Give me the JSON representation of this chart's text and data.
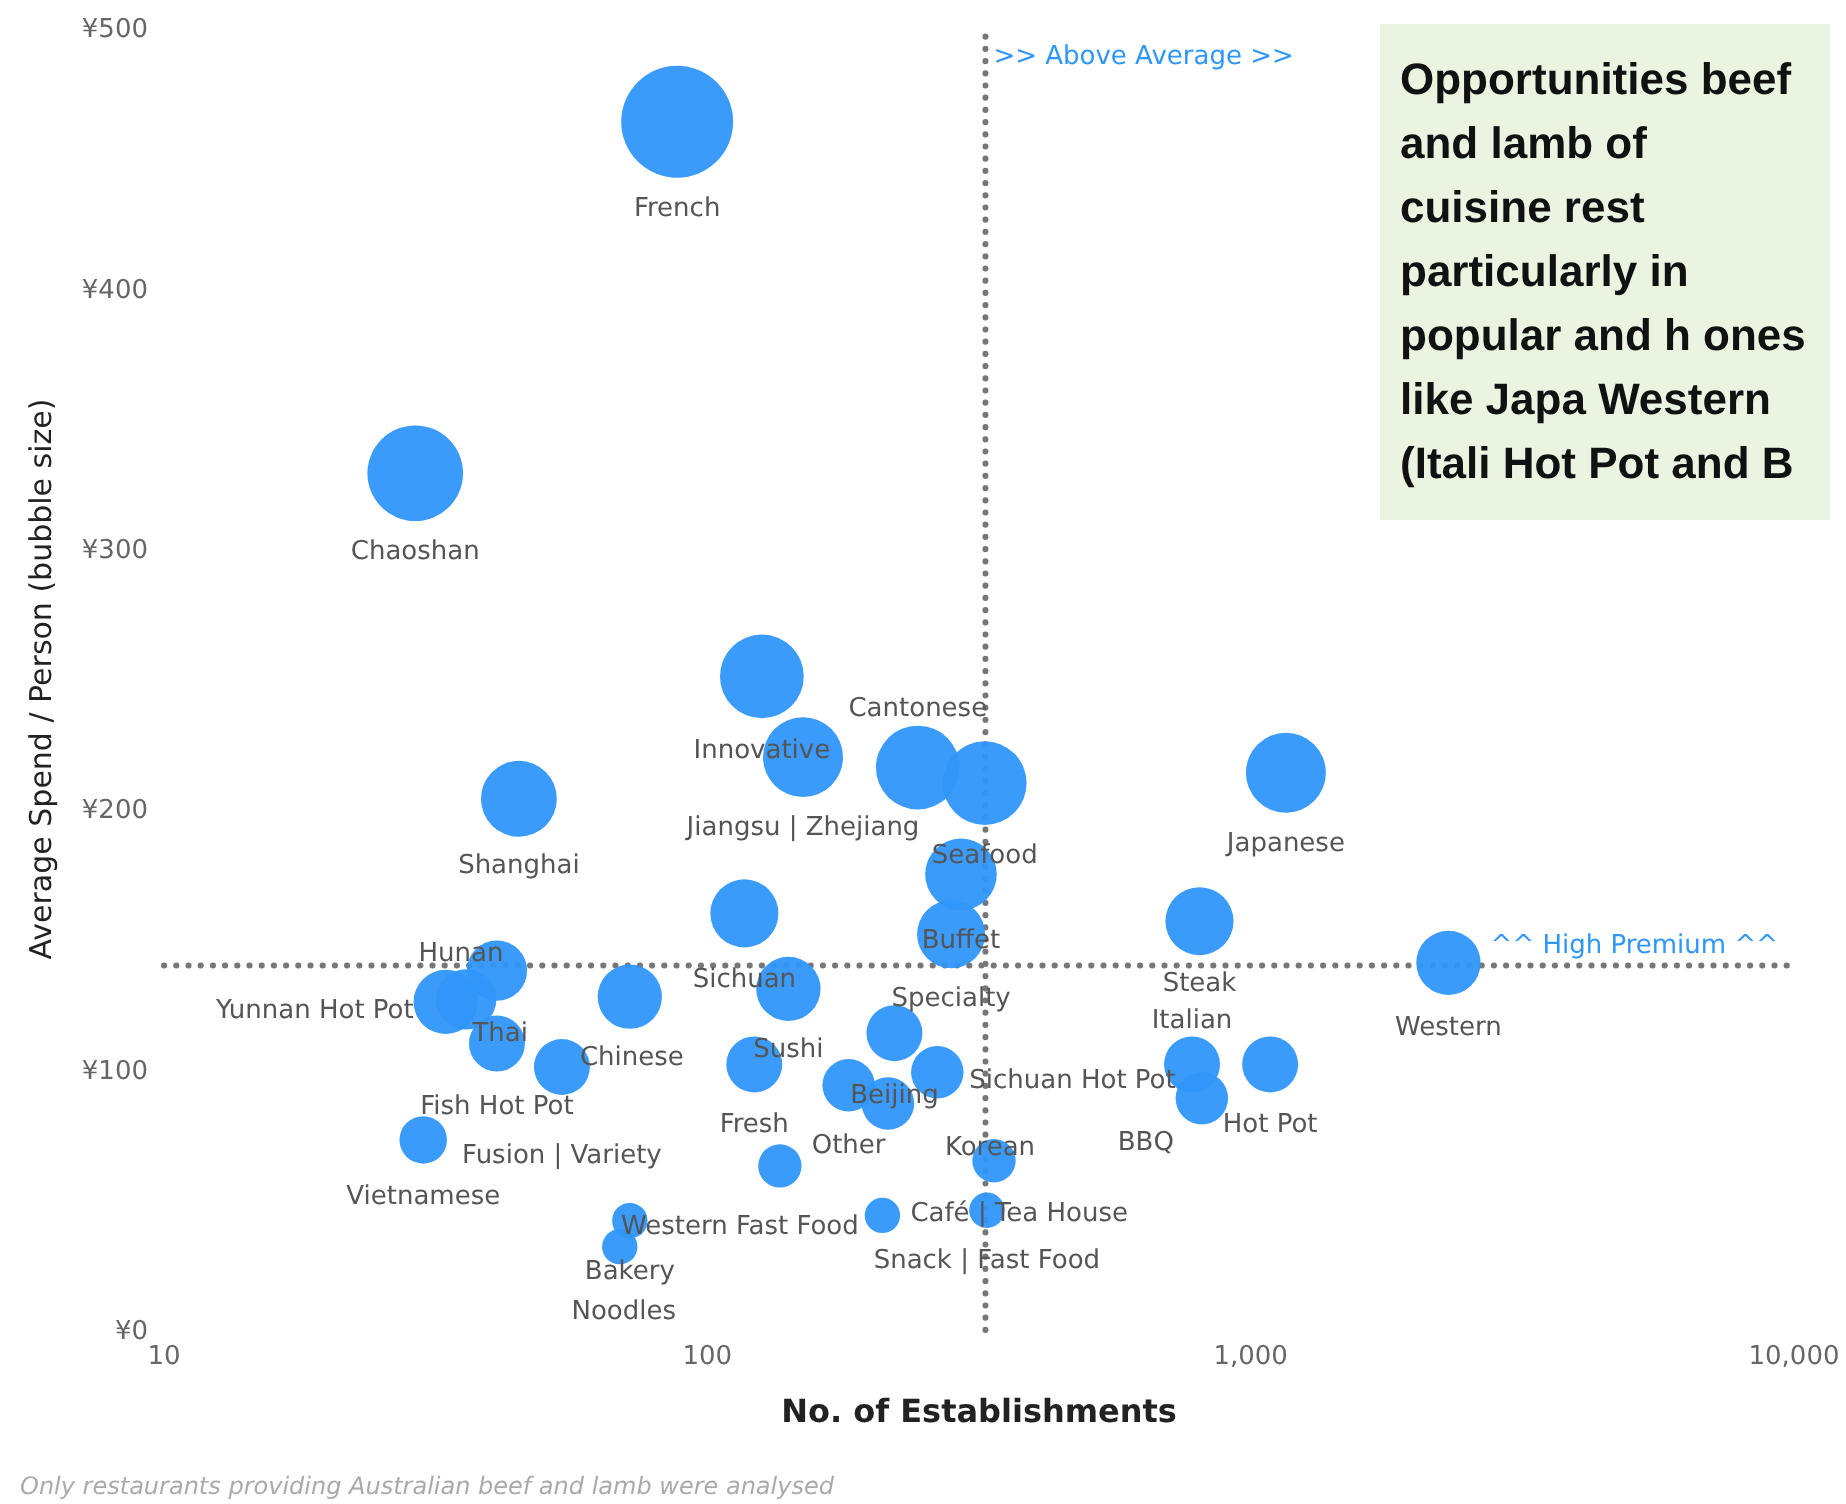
{
  "chart_data": {
    "type": "bubble",
    "xlabel": "No. of Establishments",
    "ylabel": "Average Spend / Person (bubble size)",
    "log": "x",
    "xlim": [
      10,
      10000
    ],
    "xticks": [
      10,
      100,
      {
        "value": 1000,
        "label": "1,000"
      },
      {
        "value": 10000,
        "label": "10,000"
      }
    ],
    "ylim": [
      0,
      500
    ],
    "yticks": [
      {
        "value": 0,
        "label": "¥0"
      },
      {
        "value": 100,
        "label": "¥100"
      },
      {
        "value": 200,
        "label": "¥200"
      },
      {
        "value": 300,
        "label": "¥300"
      },
      {
        "value": 400,
        "label": "¥400"
      },
      {
        "value": 500,
        "label": "¥500"
      }
    ],
    "series": [
      {
        "color": "#2f96fa",
        "x": [
          88,
          29,
          126,
          150,
          244,
          324,
          45,
          1161,
          293,
          281,
          117,
          41,
          141,
          805,
          2312,
          33,
          36,
          41,
          54,
          72,
          122,
          221,
          265,
          780,
          1086,
          813,
          182,
          215,
          136,
          337,
          30,
          72,
          69,
          210,
          327
        ],
        "values": [
          464,
          329,
          251,
          220,
          216,
          210,
          204,
          214,
          175,
          152,
          160,
          138,
          131,
          157,
          141,
          126,
          127,
          110,
          101,
          128,
          102,
          114,
          99,
          102,
          102,
          89,
          94,
          87,
          63,
          65,
          73,
          42,
          32,
          44,
          46
        ],
        "sizes": [
          1,
          0.73,
          0.56,
          0.51,
          0.56,
          0.56,
          0.46,
          0.51,
          0.41,
          0.37,
          0.37,
          0.29,
          0.33,
          0.37,
          0.33,
          0.33,
          0.29,
          0.25,
          0.25,
          0.33,
          0.25,
          0.25,
          0.22,
          0.25,
          0.25,
          0.22,
          0.22,
          0.22,
          0.15,
          0.15,
          0.18,
          0.1,
          0.1,
          0.1,
          0.1
        ]
      }
    ],
    "ref_lines": [
      {
        "axis": "x",
        "value": 325,
        "label": ">> Above Average >>",
        "color": "#777777",
        "line_style": "dotted"
      },
      {
        "axis": "y",
        "value": 140,
        "label": "^^ High Premium ^^",
        "color": "#777777",
        "line_style": "dotted"
      }
    ],
    "annotations": [
      {
        "text": "French",
        "x": 88,
        "y": 464
      },
      {
        "text": "Chaoshan",
        "x": 29,
        "y": 329
      },
      {
        "text": "Innovative",
        "x": 126,
        "y": 251
      },
      {
        "text": "Jiangsu | Zhejiang",
        "x": 150,
        "y": 220
      },
      {
        "text": "Cantonese",
        "x": 244,
        "y": 216
      },
      {
        "text": "Seafood",
        "x": 324,
        "y": 210
      },
      {
        "text": "Shanghai",
        "x": 45,
        "y": 204
      },
      {
        "text": "Japanese",
        "x": 1161,
        "y": 214
      },
      {
        "text": "Buffet",
        "x": 293,
        "y": 175
      },
      {
        "text": "Specialty",
        "x": 281,
        "y": 152
      },
      {
        "text": "Sichuan",
        "x": 117,
        "y": 160
      },
      {
        "text": "Hunan",
        "x": 41,
        "y": 138
      },
      {
        "text": "Sushi",
        "x": 141,
        "y": 131
      },
      {
        "text": "Steak",
        "x": 805,
        "y": 157
      },
      {
        "text": "Western",
        "x": 2312,
        "y": 141
      },
      {
        "text": "Yunnan Hot Pot",
        "x": 33,
        "y": 126
      },
      {
        "text": "Thai",
        "x": 36,
        "y": 127
      },
      {
        "text": "Fish Hot Pot",
        "x": 41,
        "y": 110
      },
      {
        "text": "Fusion | Variety",
        "x": 54,
        "y": 101
      },
      {
        "text": "Chinese",
        "x": 72,
        "y": 128
      },
      {
        "text": "Fresh",
        "x": 122,
        "y": 102
      },
      {
        "text": "Beijing",
        "x": 221,
        "y": 114
      },
      {
        "text": "Sichuan Hot Pot",
        "x": 265,
        "y": 99
      },
      {
        "text": "Italian",
        "x": 780,
        "y": 102
      },
      {
        "text": "Hot Pot",
        "x": 1086,
        "y": 102
      },
      {
        "text": "BBQ",
        "x": 813,
        "y": 89
      },
      {
        "text": "Other",
        "x": 182,
        "y": 94
      },
      {
        "text": "Western Fast Food",
        "x": 136,
        "y": 63
      },
      {
        "text": "Korean",
        "x": 337,
        "y": 65
      },
      {
        "text": "Vietnamese",
        "x": 30,
        "y": 73
      },
      {
        "text": "Bakery",
        "x": 72,
        "y": 42
      },
      {
        "text": "Noodles",
        "x": 69,
        "y": 32
      },
      {
        "text": "Café | Tea House",
        "x": 210,
        "y": 44
      },
      {
        "text": "Snack | Fast Food",
        "x": 327,
        "y": 46
      },
      "Only restaurants providing Australian beef and lamb were analysed",
      "Opportunities beef and lamb of cuisine rest particularly in popular and h ones like Japa Western (Itali Hot Pot and B"
    ]
  }
}
